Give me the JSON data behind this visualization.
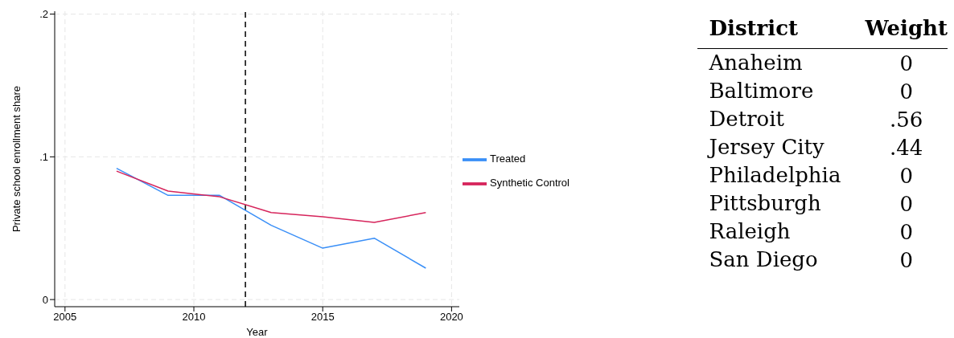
{
  "chart_data": [
    {
      "type": "line",
      "xlabel": "Year",
      "ylabel": "Private school enrollment share",
      "x": [
        2007,
        2009,
        2011,
        2013,
        2015,
        2017,
        2019
      ],
      "series": [
        {
          "name": "Treated",
          "color": "#3a8ff7",
          "values": [
            0.092,
            0.073,
            0.073,
            0.052,
            0.036,
            0.043,
            0.022
          ]
        },
        {
          "name": "Synthetic Control",
          "color": "#d6245b",
          "values": [
            0.09,
            0.076,
            0.072,
            0.061,
            0.058,
            0.054,
            0.061
          ]
        }
      ],
      "xlim": [
        2004.6,
        2020.3
      ],
      "xticks": [
        2005,
        2010,
        2015,
        2020
      ],
      "ylim": [
        -0.005,
        0.202
      ],
      "yticks": [
        {
          "value": 0,
          "label": "0"
        },
        {
          "value": 0.1,
          "label": ".1"
        },
        {
          "value": 0.2,
          "label": ".2"
        }
      ],
      "ref_lines": [
        {
          "axis": "x",
          "value": 2012,
          "color": "#000000",
          "line_style": "dashed"
        }
      ],
      "grid": true,
      "legend": "right",
      "marker": "none",
      "line_style": "solid"
    },
    {
      "type": "other",
      "xlabel": "District",
      "ylabel": "Weight",
      "categories": [
        "Anaheim",
        "Baltimore",
        "Detroit",
        "Jersey City",
        "Philadelphia",
        "Pittsburgh",
        "Raleigh",
        "San Diego"
      ],
      "value_labels": [
        "0",
        "0",
        ".56",
        ".44",
        "0",
        "0",
        "0",
        "0"
      ]
    }
  ]
}
